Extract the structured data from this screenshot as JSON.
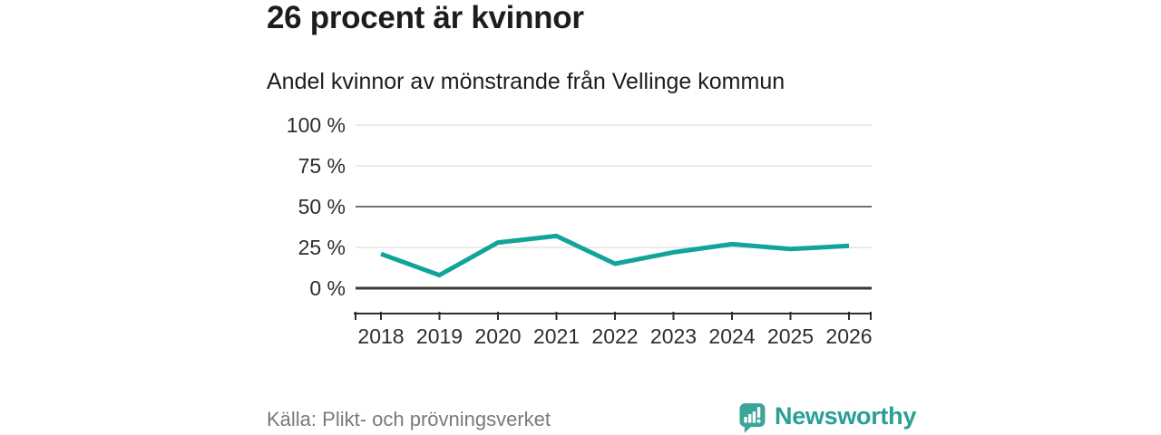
{
  "header": {
    "title": "26 procent är kvinnor",
    "subtitle": "Andel kvinnor av mönstrande från Vellinge kommun"
  },
  "chart_data": {
    "type": "line",
    "x": [
      2018,
      2019,
      2020,
      2021,
      2022,
      2023,
      2024,
      2025,
      2026
    ],
    "series": [
      {
        "name": "Andel kvinnor av mönstrande",
        "values": [
          21,
          8,
          28,
          32,
          15,
          22,
          27,
          24,
          26
        ]
      }
    ],
    "unit": "%",
    "title": "26 procent är kvinnor",
    "subtitle": "Andel kvinnor av mönstrande från Vellinge kommun",
    "xlabel": "",
    "ylabel": "",
    "ylim": [
      0,
      100
    ],
    "y_ticks": [
      100,
      75,
      50,
      25,
      0
    ],
    "y_tick_labels": [
      "100 %",
      "75 %",
      "50 %",
      "25 %",
      "0 %"
    ],
    "grid": "horizontal",
    "legend": "none",
    "line_color": "#12a39b",
    "gridline_styles": {
      "default": {
        "color": "#e3e3e3",
        "width": 1.5
      },
      "50": {
        "color": "#6e7076",
        "width": 2
      },
      "0": {
        "color": "#3a3a3a",
        "width": 3
      }
    },
    "axis_color": "#2e2e2e"
  },
  "footer": {
    "source": "Källa: Plikt- och prövningsverket",
    "brand": "Newsworthy"
  },
  "icons": {
    "brand_logo": "newsworthy-speech-bubble-bar-chart-icon"
  },
  "colors": {
    "accent_teal": "#12a39b",
    "logo_teal": "#3aa598",
    "brand_text_teal": "#28a096",
    "title_text": "#1d1d1b",
    "axis_text": "#2e2e2e",
    "source_text": "#7a7a7a",
    "gridline_light": "#e3e3e3",
    "gridline_mid": "#6e7076",
    "baseline_dark": "#3a3a3a",
    "background": "#ffffff"
  }
}
